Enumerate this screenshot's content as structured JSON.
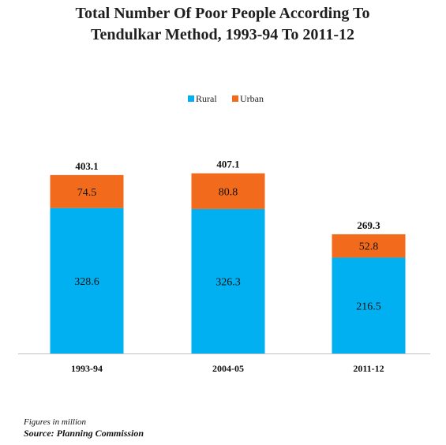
{
  "chart_data": {
    "type": "bar",
    "stacked": true,
    "title_lines": [
      "Total Number Of Poor People According To",
      "Tendulkar Method, 1993-94 To 2011-12"
    ],
    "categories": [
      "1993-94",
      "2004-05",
      "2011-12"
    ],
    "series": [
      {
        "name": "Rural",
        "values": [
          328.6,
          326.3,
          216.5
        ],
        "color": "#00b0f0"
      },
      {
        "name": "Urban",
        "values": [
          74.5,
          80.8,
          52.8
        ],
        "color": "#f26b1d"
      }
    ],
    "totals": [
      403.1,
      407.1,
      269.3
    ],
    "ylim": [
      0,
      450
    ],
    "grid": false,
    "legend_position": "top-center",
    "axis_color": "#bfbfbf"
  },
  "footnote": {
    "units": "Figures in million",
    "source": "Source: Planning Commission"
  }
}
